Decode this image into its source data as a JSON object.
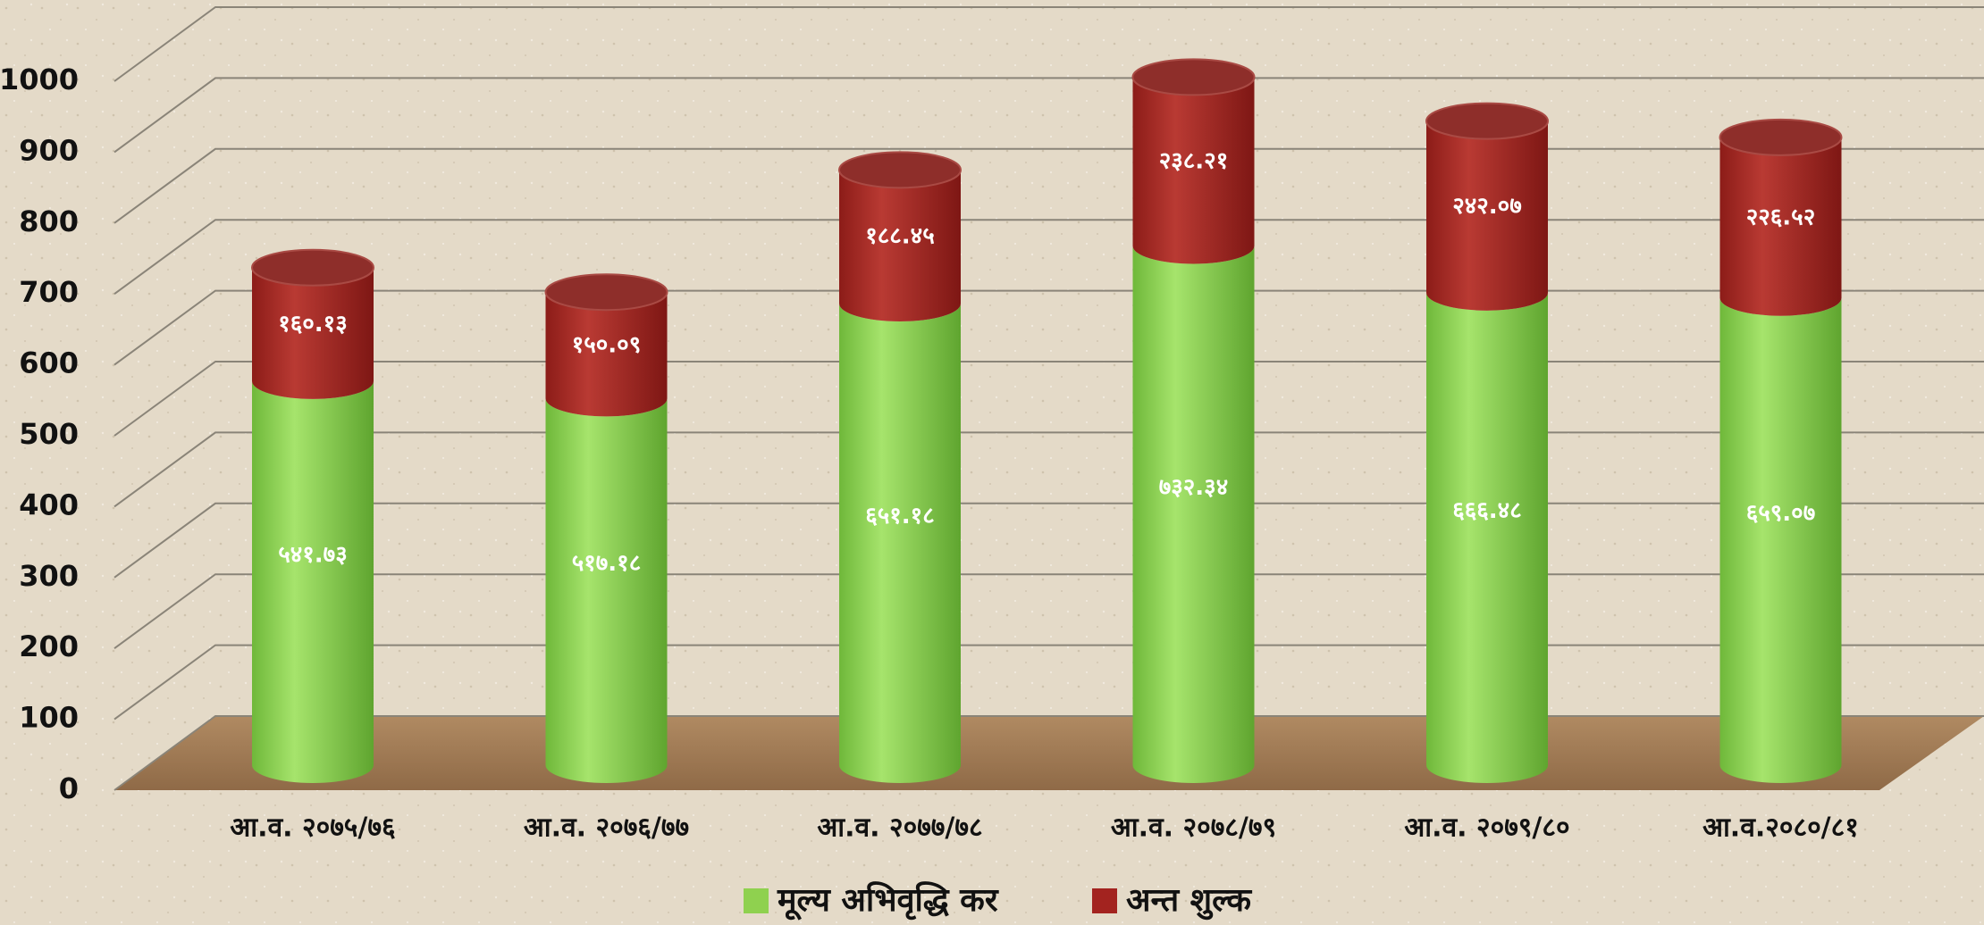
{
  "chart_data": {
    "type": "bar3d_stacked",
    "categories": [
      "आ.व. २०७५/७६",
      "आ.व. २०७६/७७",
      "आ.व. २०७७/७८",
      "आ.व. २०७८/७९",
      "आ.व. २०७९/८०",
      "आ.व.२०८०/८१"
    ],
    "series": [
      {
        "name": "मूल्य अभिवृद्धि कर",
        "color": "#8fd14f",
        "values": [
          541.73,
          517.18,
          651.18,
          732.34,
          666.48,
          659.07
        ],
        "value_labels": [
          "५४१.७३",
          "५१७.१८",
          "६५१.१८",
          "७३२.३४",
          "६६६.४८",
          "६५९.०७"
        ]
      },
      {
        "name": "अन्त शुल्क",
        "color": "#a3231f",
        "values": [
          160.13,
          150.09,
          188.45,
          238.21,
          242.07,
          226.52
        ],
        "value_labels": [
          "१६०.१३",
          "१५०.०९",
          "१८८.४५",
          "२३८.२१",
          "२४२.०७",
          "२२६.५२"
        ]
      }
    ],
    "ylim": [
      0,
      1100
    ],
    "yticks": [
      0,
      100,
      200,
      300,
      400,
      500,
      600,
      700,
      800,
      900,
      1000
    ],
    "grid": true,
    "stacked": true,
    "legend": "bottom"
  }
}
